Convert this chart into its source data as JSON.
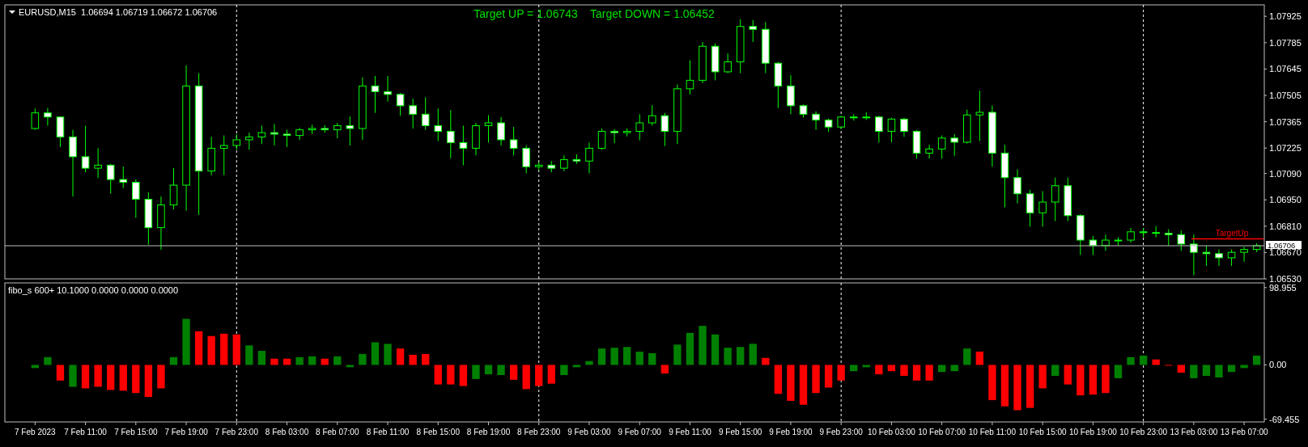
{
  "chart_data": [
    {
      "type": "candlestick",
      "title": "EURUSD,M15  1.06694 1.06719 1.06672 1.06706",
      "annotations": [
        "Target UP = 1.06743    Target DOWN = 1.06452"
      ],
      "color": "#00ff00",
      "categories": [
        null,
        null,
        null,
        null,
        null,
        null,
        null,
        null,
        null,
        null,
        null,
        null,
        null,
        null,
        null,
        null,
        null,
        null,
        null,
        null,
        null,
        null,
        null,
        null,
        null,
        null,
        null,
        null,
        null,
        null,
        null,
        null,
        null,
        null,
        null,
        null,
        null,
        null,
        null,
        null,
        null,
        null,
        null,
        null,
        null,
        null,
        null,
        null,
        null,
        null,
        null,
        null,
        null,
        null,
        null,
        null,
        null,
        null,
        null,
        null,
        null,
        null,
        null,
        null,
        null,
        null,
        null,
        null,
        null,
        null,
        null,
        null,
        null,
        null,
        null,
        null,
        null,
        null,
        null,
        null,
        null,
        null,
        null,
        null,
        null,
        null,
        null,
        null,
        null,
        null,
        null,
        null,
        null,
        null,
        null,
        null,
        null,
        null
      ],
      "ohlc": [
        [
          1.07329,
          1.07435,
          1.07322,
          1.07412
        ],
        [
          1.07412,
          1.07438,
          1.07344,
          1.0739
        ],
        [
          1.0739,
          1.07393,
          1.07231,
          1.07284
        ],
        [
          1.07284,
          1.07322,
          1.06968,
          1.07179
        ],
        [
          1.07179,
          1.07344,
          1.07096,
          1.07118
        ],
        [
          1.07118,
          1.07224,
          1.07066,
          1.07134
        ],
        [
          1.07134,
          1.07141,
          1.06983,
          1.07058
        ],
        [
          1.07058,
          1.07126,
          1.07013,
          1.07043
        ],
        [
          1.07043,
          1.07058,
          1.06855,
          1.06953
        ],
        [
          1.06953,
          1.0699,
          1.06712,
          1.06802
        ],
        [
          1.06802,
          1.06968,
          1.06685,
          1.06923
        ],
        [
          1.06923,
          1.07118,
          1.069,
          1.07028
        ],
        [
          1.07028,
          1.07664,
          1.06893,
          1.07555
        ],
        [
          1.07555,
          1.07623,
          1.0687,
          1.07103
        ],
        [
          1.07103,
          1.07284,
          1.07081,
          1.07224
        ],
        [
          1.07224,
          1.07292,
          1.07081,
          1.07239
        ],
        [
          1.07239,
          1.07299,
          1.07216,
          1.07269
        ],
        [
          1.07269,
          1.07307,
          1.07216,
          1.07284
        ],
        [
          1.07284,
          1.07344,
          1.07246,
          1.07307
        ],
        [
          1.07307,
          1.07352,
          1.07239,
          1.07299
        ],
        [
          1.07299,
          1.07322,
          1.07231,
          1.07292
        ],
        [
          1.07292,
          1.07332,
          1.07269,
          1.07322
        ],
        [
          1.07322,
          1.07349,
          1.07299,
          1.07329
        ],
        [
          1.07329,
          1.07347,
          1.07307,
          1.07322
        ],
        [
          1.07322,
          1.07359,
          1.07277,
          1.07344
        ],
        [
          1.07344,
          1.07393,
          1.07239,
          1.07329
        ],
        [
          1.07329,
          1.076,
          1.07269,
          1.07555
        ],
        [
          1.07555,
          1.07608,
          1.07412,
          1.07525
        ],
        [
          1.07525,
          1.07608,
          1.07472,
          1.0751
        ],
        [
          1.0751,
          1.07518,
          1.07397,
          1.0745
        ],
        [
          1.0745,
          1.07487,
          1.07329,
          1.07405
        ],
        [
          1.07405,
          1.07495,
          1.07322,
          1.07344
        ],
        [
          1.07344,
          1.07435,
          1.07262,
          1.07314
        ],
        [
          1.07314,
          1.07427,
          1.07171,
          1.07254
        ],
        [
          1.07254,
          1.07344,
          1.07134,
          1.07224
        ],
        [
          1.07224,
          1.07359,
          1.07186,
          1.07344
        ],
        [
          1.07344,
          1.074,
          1.07254,
          1.07359
        ],
        [
          1.07359,
          1.0739,
          1.07239,
          1.07269
        ],
        [
          1.07269,
          1.07337,
          1.07186,
          1.07224
        ],
        [
          1.07224,
          1.07239,
          1.07091,
          1.07126
        ],
        [
          1.07126,
          1.07149,
          1.07111,
          1.07134
        ],
        [
          1.07134,
          1.07156,
          1.07096,
          1.07118
        ],
        [
          1.07118,
          1.07186,
          1.07103,
          1.07164
        ],
        [
          1.07164,
          1.07191,
          1.07141,
          1.07156
        ],
        [
          1.07156,
          1.07254,
          1.07091,
          1.07224
        ],
        [
          1.07224,
          1.07329,
          1.07216,
          1.07314
        ],
        [
          1.07314,
          1.07326,
          1.07251,
          1.07307
        ],
        [
          1.07307,
          1.07329,
          1.07287,
          1.07314
        ],
        [
          1.07314,
          1.07405,
          1.07266,
          1.07359
        ],
        [
          1.07359,
          1.07453,
          1.07344,
          1.07397
        ],
        [
          1.07397,
          1.07412,
          1.07236,
          1.07314
        ],
        [
          1.07314,
          1.07563,
          1.07246,
          1.0754
        ],
        [
          1.0754,
          1.07691,
          1.0751,
          1.07585
        ],
        [
          1.07585,
          1.07789,
          1.0757,
          1.07766
        ],
        [
          1.07766,
          1.07781,
          1.07585,
          1.0763
        ],
        [
          1.0763,
          1.07728,
          1.07623,
          1.07683
        ],
        [
          1.07683,
          1.07909,
          1.07623,
          1.07871
        ],
        [
          1.07871,
          1.07905,
          1.07789,
          1.07856
        ],
        [
          1.07856,
          1.07894,
          1.07623,
          1.07676
        ],
        [
          1.07676,
          1.07683,
          1.07438,
          1.07555
        ],
        [
          1.07555,
          1.07612,
          1.07405,
          1.0745
        ],
        [
          1.0745,
          1.07457,
          1.07387,
          1.07405
        ],
        [
          1.07405,
          1.0742,
          1.07322,
          1.07374
        ],
        [
          1.07374,
          1.07382,
          1.07311,
          1.07337
        ],
        [
          1.07337,
          1.07397,
          1.07326,
          1.0739
        ],
        [
          1.0739,
          1.07405,
          1.07371,
          1.07387
        ],
        [
          1.07387,
          1.07415,
          1.07374,
          1.0739
        ],
        [
          1.0739,
          1.07397,
          1.07254,
          1.07314
        ],
        [
          1.07314,
          1.07386,
          1.07256,
          1.07379
        ],
        [
          1.07379,
          1.07386,
          1.07285,
          1.07314
        ],
        [
          1.07314,
          1.07321,
          1.07169,
          1.07198
        ],
        [
          1.07198,
          1.07242,
          1.07169,
          1.0722
        ],
        [
          1.0722,
          1.07292,
          1.07169,
          1.07278
        ],
        [
          1.07278,
          1.07299,
          1.07184,
          1.07256
        ],
        [
          1.07256,
          1.07429,
          1.07249,
          1.07401
        ],
        [
          1.07401,
          1.0753,
          1.07263,
          1.07415
        ],
        [
          1.07415,
          1.07451,
          1.07126,
          1.07198
        ],
        [
          1.07198,
          1.07242,
          1.0691,
          1.07068
        ],
        [
          1.07068,
          1.07112,
          1.06931,
          1.06982
        ],
        [
          1.06982,
          1.07003,
          1.06808,
          1.06881
        ],
        [
          1.06881,
          1.06996,
          1.06808,
          1.06938
        ],
        [
          1.06938,
          1.07068,
          1.06837,
          1.07025
        ],
        [
          1.07025,
          1.07068,
          1.06837,
          1.06866
        ],
        [
          1.06866,
          1.06873,
          1.06657,
          1.06736
        ],
        [
          1.06736,
          1.06758,
          1.06657,
          1.06707
        ],
        [
          1.06707,
          1.06765,
          1.06679,
          1.06736
        ],
        [
          1.06736,
          1.06751,
          1.06707,
          1.06736
        ],
        [
          1.06736,
          1.06801,
          1.06722,
          1.0678
        ],
        [
          1.0678,
          1.06801,
          1.06751,
          1.06776
        ],
        [
          1.06776,
          1.06811,
          1.06751,
          1.06772
        ],
        [
          1.06772,
          1.06794,
          1.06707,
          1.06765
        ],
        [
          1.06765,
          1.06787,
          1.06679,
          1.06715
        ],
        [
          1.06715,
          1.06765,
          1.06549,
          1.06671
        ],
        [
          1.06671,
          1.06707,
          1.06599,
          1.06664
        ],
        [
          1.06664,
          1.06686,
          1.06599,
          1.06642
        ],
        [
          1.06642,
          1.06686,
          1.06599,
          1.06671
        ],
        [
          1.06671,
          1.067,
          1.06621,
          1.06686
        ],
        [
          1.06686,
          1.06719,
          1.06672,
          1.06706
        ]
      ],
      "ylim": [
        1.0653,
        1.07986
      ],
      "yticks": [
        1.07925,
        1.07785,
        1.07645,
        1.07505,
        1.07365,
        1.07225,
        {
          "value": 1.0709,
          "label": "1.07090"
        },
        {
          "value": 1.0695,
          "label": "1.06950"
        },
        {
          "value": 1.0681,
          "label": "1.06810"
        },
        {
          "value": 1.0667,
          "label": "1.06670"
        },
        {
          "value": 1.0653,
          "label": "1.06530"
        }
      ],
      "ref_lines": [
        {
          "axis": "y",
          "value": 1.06706,
          "label": "1.06706",
          "color": "#c0c0c0"
        },
        {
          "axis": "y",
          "value": 1.06743,
          "label": "TargetUp",
          "color": "#ff0000"
        }
      ],
      "grid": "x"
    },
    {
      "type": "bar",
      "title": "fibo_s 600+ 10.1000 0.0000 0.0000 0.0000",
      "categories": [
        "7 Feb 2023",
        null,
        null,
        null,
        "7 Feb 11:00",
        null,
        null,
        null,
        "7 Feb 15:00",
        null,
        null,
        null,
        "7 Feb 19:00",
        null,
        null,
        null,
        "7 Feb 23:00",
        null,
        null,
        null,
        "8 Feb 03:00",
        null,
        null,
        null,
        "8 Feb 07:00",
        null,
        null,
        null,
        "8 Feb 11:00",
        null,
        null,
        null,
        "8 Feb 15:00",
        null,
        null,
        null,
        "8 Feb 19:00",
        null,
        null,
        null,
        "8 Feb 23:00",
        null,
        null,
        null,
        "9 Feb 03:00",
        null,
        null,
        null,
        "9 Feb 07:00",
        null,
        null,
        null,
        "9 Feb 11:00",
        null,
        null,
        null,
        "9 Feb 15:00",
        null,
        null,
        null,
        "9 Feb 19:00",
        null,
        null,
        null,
        "9 Feb 23:00",
        null,
        null,
        null,
        "10 Feb 03:00",
        null,
        null,
        null,
        "10 Feb 07:00",
        null,
        null,
        null,
        "10 Feb 11:00",
        null,
        null,
        null,
        "10 Feb 15:00",
        null,
        null,
        null,
        "10 Feb 19:00",
        null,
        null,
        null,
        "10 Feb 23:00",
        null,
        null,
        null,
        "13 Feb 03:00",
        null,
        null,
        null,
        "13 Feb 07:00",
        null
      ],
      "values": [
        -4,
        10,
        -20,
        -28,
        -30,
        -28,
        -32,
        -33,
        -36,
        -41,
        -30,
        10,
        59,
        43,
        37,
        40,
        39,
        25,
        18,
        8,
        8,
        10,
        11,
        8,
        11,
        -3,
        14,
        29,
        27,
        21,
        13,
        14,
        -25,
        -25,
        -27,
        -18,
        -12,
        -13,
        -19,
        -31,
        -27,
        -24,
        -13,
        -3,
        5,
        21,
        22,
        23,
        17,
        15,
        -11,
        26,
        41,
        50,
        39,
        22,
        23,
        27,
        9,
        -37,
        -46,
        -51,
        -36,
        -29,
        -20,
        -8,
        -3,
        -12,
        -8,
        -14,
        -20,
        -20,
        -9,
        -8,
        21,
        17,
        -45,
        -53,
        -58,
        -55,
        -30,
        -14,
        -25,
        -39,
        -38,
        -36,
        -17,
        10,
        12,
        7,
        -1,
        -10,
        -17,
        -14,
        -16,
        -9,
        -4,
        12
      ],
      "colors": [
        "#008000",
        "#008000",
        "#ff0000",
        "#008000",
        "#ff0000",
        "#ff0000",
        "#ff0000",
        "#ff0000",
        "#ff0000",
        "#ff0000",
        "#ff0000",
        "#008000",
        "#008000",
        "#ff0000",
        "#ff0000",
        "#ff0000",
        "#ff0000",
        "#008000",
        "#008000",
        "#ff0000",
        "#ff0000",
        "#008000",
        "#008000",
        "#ff0000",
        "#008000",
        "#008000",
        "#008000",
        "#008000",
        "#008000",
        "#ff0000",
        "#ff0000",
        "#ff0000",
        "#ff0000",
        "#ff0000",
        "#ff0000",
        "#008000",
        "#008000",
        "#008000",
        "#ff0000",
        "#ff0000",
        "#ff0000",
        "#ff0000",
        "#008000",
        "#008000",
        "#008000",
        "#008000",
        "#008000",
        "#008000",
        "#008000",
        "#008000",
        "#ff0000",
        "#008000",
        "#008000",
        "#008000",
        "#008000",
        "#008000",
        "#008000",
        "#008000",
        "#ff0000",
        "#ff0000",
        "#ff0000",
        "#ff0000",
        "#ff0000",
        "#ff0000",
        "#ff0000",
        "#008000",
        "#008000",
        "#ff0000",
        "#ff0000",
        "#ff0000",
        "#ff0000",
        "#ff0000",
        "#008000",
        "#008000",
        "#008000",
        "#ff0000",
        "#ff0000",
        "#ff0000",
        "#ff0000",
        "#ff0000",
        "#ff0000",
        "#008000",
        "#ff0000",
        "#ff0000",
        "#ff0000",
        "#ff0000",
        "#008000",
        "#008000",
        "#008000",
        "#ff0000",
        "#ff0000",
        "#ff0000",
        "#008000",
        "#008000",
        "#008000",
        "#008000",
        "#008000",
        "#008000"
      ],
      "ylim": [
        -73,
        105
      ],
      "yticks": [
        98.955,
        {
          "value": 0,
          "label": "0.00"
        },
        -69.455
      ],
      "ref_lines": [
        {
          "axis": "x",
          "value": "7 Feb 23:00",
          "label": null,
          "color": "#ffffff",
          "line_style": "dashed"
        },
        {
          "axis": "x",
          "value": "8 Feb 23:00",
          "label": null,
          "color": "#ffffff",
          "line_style": "dashed"
        },
        {
          "axis": "x",
          "value": "9 Feb 23:00",
          "label": null,
          "color": "#ffffff",
          "line_style": "dashed"
        },
        {
          "axis": "x",
          "value": "10 Feb 23:00",
          "label": null,
          "color": "#ffffff",
          "line_style": "dashed"
        }
      ]
    }
  ]
}
